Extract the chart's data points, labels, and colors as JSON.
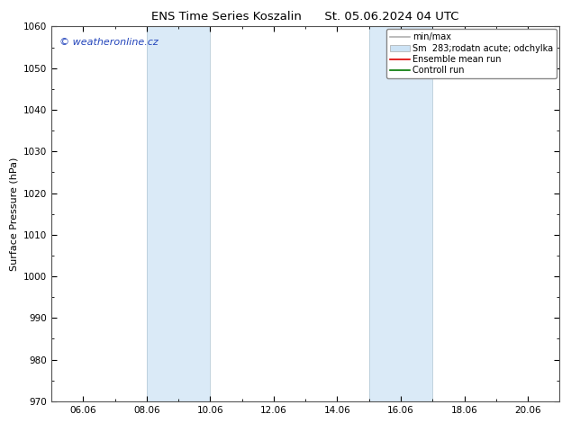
{
  "title": "ENS Time Series Koszalin      St. 05.06.2024 04 UTC",
  "ylabel": "Surface Pressure (hPa)",
  "ylim": [
    970,
    1060
  ],
  "ytick_step": 10,
  "xlim": [
    5.0,
    21.0
  ],
  "xtick_labels": [
    "06.06",
    "08.06",
    "10.06",
    "12.06",
    "14.06",
    "16.06",
    "18.06",
    "20.06"
  ],
  "xtick_positions_day": [
    6,
    8,
    10,
    12,
    14,
    16,
    18,
    20
  ],
  "shaded_bands": [
    {
      "start_day": 8.0,
      "end_day": 10.0
    },
    {
      "start_day": 15.0,
      "end_day": 17.0
    }
  ],
  "shade_color": "#daeaf7",
  "background_color": "#ffffff",
  "watermark_text": "© weatheronline.cz",
  "watermark_color": "#2244bb",
  "legend_entries": [
    {
      "label": "min/max",
      "color": "#b0b0b0",
      "lw": 1.2,
      "type": "line"
    },
    {
      "label": "Sm  283;rodatn acute; odchylka",
      "color": "#cde3f5",
      "type": "patch"
    },
    {
      "label": "Ensemble mean run",
      "color": "#dd0000",
      "lw": 1.2,
      "type": "line"
    },
    {
      "label": "Controll run",
      "color": "#007700",
      "lw": 1.2,
      "type": "line"
    }
  ],
  "title_fontsize": 9.5,
  "axis_label_fontsize": 8,
  "tick_fontsize": 7.5,
  "legend_fontsize": 7,
  "watermark_fontsize": 8
}
